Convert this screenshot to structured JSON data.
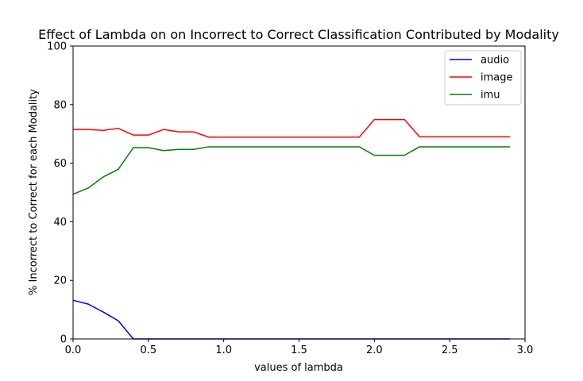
{
  "chart_data": {
    "type": "line",
    "title": "Effect of Lambda on on Incorrect to Correct Classification Contributed by Modality",
    "xlabel": "values of lambda",
    "ylabel": "% Incorrect to Correct for each Modality",
    "xlim": [
      0.0,
      3.0
    ],
    "ylim": [
      0,
      100
    ],
    "xticks": [
      0.0,
      0.5,
      1.0,
      1.5,
      2.0,
      2.5,
      3.0
    ],
    "xtick_labels": [
      "0.0",
      "0.5",
      "1.0",
      "1.5",
      "2.0",
      "2.5",
      "3.0"
    ],
    "yticks": [
      0,
      20,
      40,
      60,
      80,
      100
    ],
    "ytick_labels": [
      "0",
      "20",
      "40",
      "60",
      "80",
      "100"
    ],
    "grid": false,
    "legend_position": "top-right",
    "x": [
      0.0,
      0.1,
      0.2,
      0.3,
      0.4,
      0.5,
      0.6,
      0.7,
      0.8,
      0.9,
      1.0,
      1.1,
      1.2,
      1.3,
      1.4,
      1.5,
      1.6,
      1.7,
      1.8,
      1.9,
      2.0,
      2.1,
      2.2,
      2.3,
      2.4,
      2.5,
      2.6,
      2.7,
      2.8,
      2.9
    ],
    "series": [
      {
        "name": "audio",
        "color": "#0000ff",
        "values": [
          13.2,
          11.9,
          9.2,
          6.2,
          0.0,
          0.0,
          0.0,
          0.0,
          0.0,
          0.0,
          0.0,
          0.0,
          0.0,
          0.0,
          0.0,
          0.0,
          0.0,
          0.0,
          0.0,
          0.0,
          0.0,
          0.0,
          0.0,
          0.0,
          0.0,
          0.0,
          0.0,
          0.0,
          0.0,
          0.0
        ]
      },
      {
        "name": "image",
        "color": "#ff0000",
        "values": [
          71.5,
          71.5,
          71.2,
          71.9,
          69.6,
          69.6,
          71.5,
          70.7,
          70.7,
          68.9,
          68.9,
          68.9,
          68.9,
          68.9,
          68.9,
          68.9,
          68.9,
          68.9,
          68.9,
          68.9,
          74.9,
          74.9,
          74.9,
          69.0,
          69.0,
          69.0,
          69.0,
          69.0,
          69.0,
          69.0
        ]
      },
      {
        "name": "imu",
        "color": "#008000",
        "values": [
          49.4,
          51.5,
          55.3,
          57.9,
          65.3,
          65.3,
          64.3,
          64.7,
          64.7,
          65.6,
          65.6,
          65.6,
          65.6,
          65.6,
          65.6,
          65.6,
          65.6,
          65.6,
          65.6,
          65.6,
          62.7,
          62.7,
          62.7,
          65.6,
          65.6,
          65.6,
          65.6,
          65.6,
          65.6,
          65.6
        ]
      }
    ]
  }
}
